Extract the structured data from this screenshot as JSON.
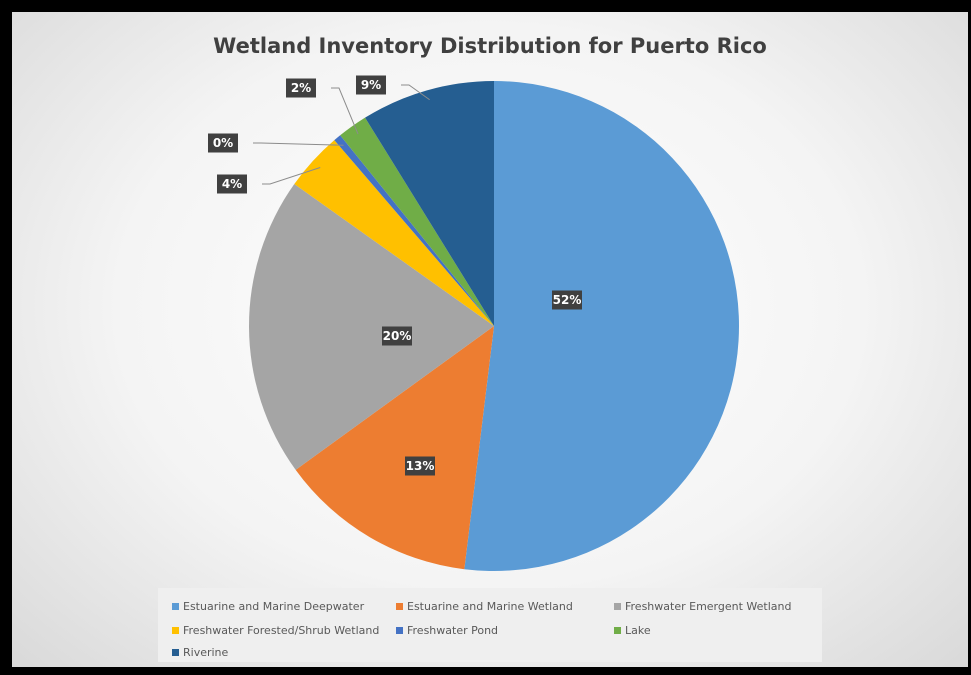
{
  "chart_data": {
    "type": "pie",
    "title": "Wetland Inventory Distribution for Puerto Rico",
    "categories": [
      "Estuarine and Marine Deepwater",
      "Estuarine and Marine Wetland",
      "Freshwater Emergent Wetland",
      "Freshwater Forested/Shrub Wetland",
      "Freshwater Pond",
      "Lake",
      "Riverine"
    ],
    "values": [
      52.4,
      13.2,
      20.0,
      3.9,
      0.5,
      2.0,
      8.9
    ],
    "labels": [
      "52%",
      "13%",
      "20%",
      "4%",
      "0%",
      "2%",
      "9%"
    ],
    "colors": [
      "#5b9bd5",
      "#ed7d31",
      "#a5a5a5",
      "#ffc000",
      "#4472c4",
      "#70ad47",
      "#255e91"
    ],
    "legend_position": "bottom"
  }
}
